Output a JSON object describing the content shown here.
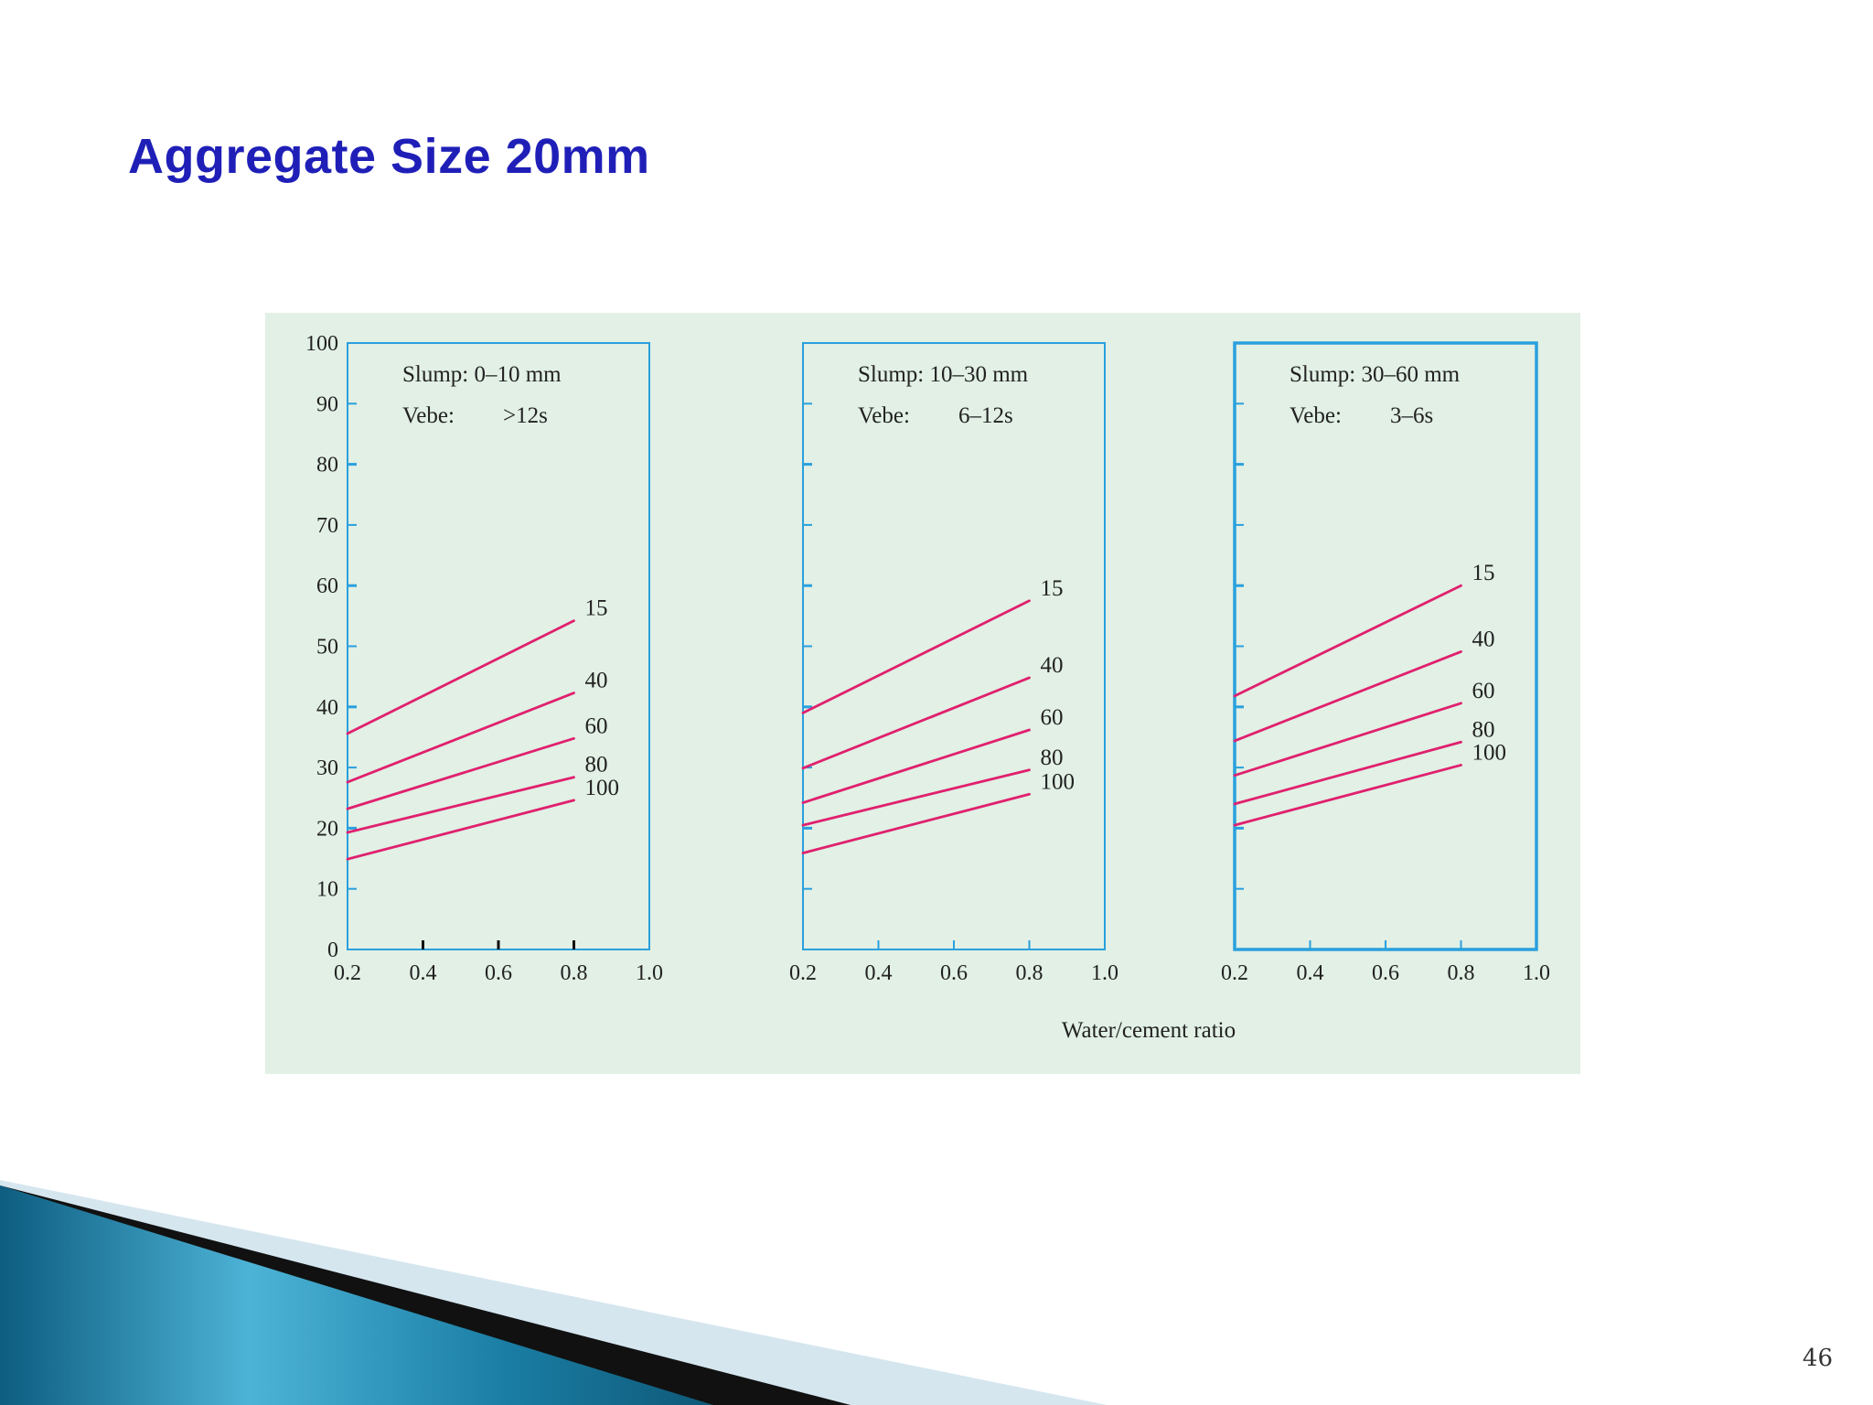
{
  "slide": {
    "title": "Aggregate Size 20mm",
    "page_number": "46"
  },
  "colors": {
    "title": "#1f1fb8",
    "panel_background": "#e2f0e5",
    "frame": "#2aa0dd",
    "curves": "#e0206e",
    "accent_band": "#1b7fa6"
  },
  "chart_data": {
    "type": "line",
    "xlabel": "Water/cement ratio",
    "ylabel": "",
    "x_ticks": [
      "0.2",
      "0.4",
      "0.6",
      "0.8",
      "1.0"
    ],
    "y_ticks": [
      "0",
      "10",
      "20",
      "30",
      "40",
      "50",
      "60",
      "70",
      "80",
      "90",
      "100"
    ],
    "xlim": [
      0.2,
      1.0
    ],
    "ylim": [
      0,
      100
    ],
    "panels": [
      {
        "slump": "Slump:  0–10 mm",
        "vebe_label": "Vebe:",
        "vebe_value": ">12s",
        "series": [
          {
            "name": "15",
            "x": [
              0.2,
              0.8
            ],
            "y": [
              35.6,
              54.2
            ]
          },
          {
            "name": "40",
            "x": [
              0.2,
              0.8
            ],
            "y": [
              27.6,
              42.3
            ]
          },
          {
            "name": "60",
            "x": [
              0.2,
              0.8
            ],
            "y": [
              23.2,
              34.8
            ]
          },
          {
            "name": "80",
            "x": [
              0.2,
              0.8
            ],
            "y": [
              19.3,
              28.4
            ]
          },
          {
            "name": "100",
            "x": [
              0.2,
              0.8
            ],
            "y": [
              14.9,
              24.6
            ]
          }
        ]
      },
      {
        "slump": "Slump:  10–30 mm",
        "vebe_label": "Vebe:",
        "vebe_value": "6–12s",
        "series": [
          {
            "name": "15",
            "x": [
              0.2,
              0.8
            ],
            "y": [
              39.0,
              57.5
            ]
          },
          {
            "name": "40",
            "x": [
              0.2,
              0.8
            ],
            "y": [
              29.9,
              44.8
            ]
          },
          {
            "name": "60",
            "x": [
              0.2,
              0.8
            ],
            "y": [
              24.2,
              36.2
            ]
          },
          {
            "name": "80",
            "x": [
              0.2,
              0.8
            ],
            "y": [
              20.5,
              29.6
            ]
          },
          {
            "name": "100",
            "x": [
              0.2,
              0.8
            ],
            "y": [
              15.9,
              25.6
            ]
          }
        ]
      },
      {
        "slump": "Slump:  30–60 mm",
        "vebe_label": "Vebe:",
        "vebe_value": "3–6s",
        "series": [
          {
            "name": "15",
            "x": [
              0.2,
              0.8
            ],
            "y": [
              41.8,
              60.0
            ]
          },
          {
            "name": "40",
            "x": [
              0.2,
              0.8
            ],
            "y": [
              34.4,
              49.1
            ]
          },
          {
            "name": "60",
            "x": [
              0.2,
              0.8
            ],
            "y": [
              28.7,
              40.6
            ]
          },
          {
            "name": "80",
            "x": [
              0.2,
              0.8
            ],
            "y": [
              24.0,
              34.2
            ]
          },
          {
            "name": "100",
            "x": [
              0.2,
              0.8
            ],
            "y": [
              20.5,
              30.4
            ]
          }
        ]
      }
    ]
  }
}
